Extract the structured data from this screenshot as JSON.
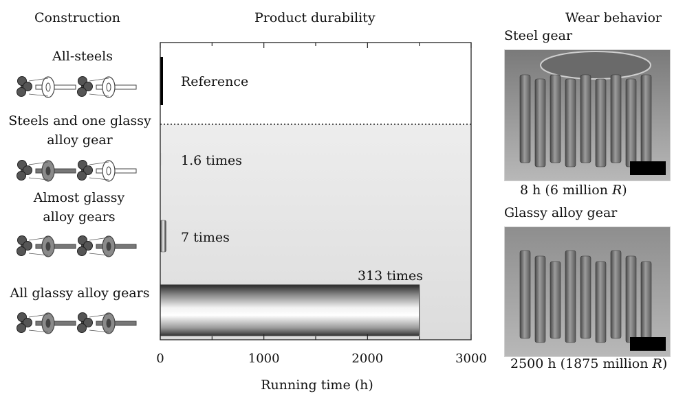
{
  "headers": {
    "construction": "Construction",
    "durability": "Product durability",
    "wear": "Wear behavior"
  },
  "constructions": [
    {
      "label_lines": [
        "All-steels"
      ],
      "gears": [
        "steel",
        "steel",
        "steel",
        "steel"
      ]
    },
    {
      "label_lines": [
        "Steels and one glassy",
        "alloy gear"
      ],
      "gears": [
        "steel",
        "glassy",
        "steel",
        "steel"
      ]
    },
    {
      "label_lines": [
        "Almost glassy",
        "alloy gears"
      ],
      "gears": [
        "steel",
        "glassy",
        "steel",
        "glassy"
      ]
    },
    {
      "label_lines": [
        "All glassy alloy gears"
      ],
      "gears": [
        "glassy",
        "glassy",
        "glassy",
        "glassy"
      ]
    }
  ],
  "chart_data": {
    "type": "bar",
    "orientation": "horizontal",
    "categories": [
      "All-steels",
      "Steels and one glassy alloy gear",
      "Almost glassy alloy gears",
      "All glassy alloy gears"
    ],
    "values": [
      8,
      13,
      56,
      2500
    ],
    "bar_labels": [
      "Reference",
      "1.6 times",
      "7 times",
      "313 times"
    ],
    "xlabel": "Running time (h)",
    "xlim": [
      0,
      3000
    ],
    "xticks": [
      0,
      1000,
      2000,
      3000
    ],
    "reference_divider": "dotted line after first category"
  },
  "wear": {
    "steel": {
      "title": "Steel gear",
      "caption_main": "8 h (6 million ",
      "caption_var": "R",
      "caption_end": ")"
    },
    "glassy": {
      "title": "Glassy alloy gear",
      "caption_main": "2500 h (1875 million ",
      "caption_var": "R",
      "caption_end": ")"
    }
  }
}
